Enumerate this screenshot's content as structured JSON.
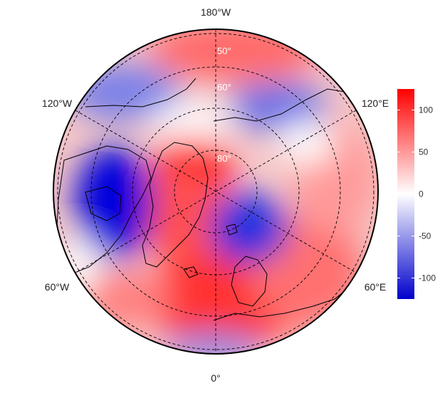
{
  "map": {
    "projection": "north polar stereographic",
    "longitude_labels": {
      "top": "180°W",
      "upper_left": "120°W",
      "upper_right": "120°E",
      "lower_left": "60°W",
      "lower_right": "60°E",
      "bottom": "0°"
    },
    "latitude_labels": [
      "80°",
      "60°",
      "50°"
    ],
    "colors": {
      "negative": "#0000cc",
      "zero": "#ffffff",
      "positive": "#ff0000"
    }
  },
  "colorbar": {
    "ticks": [
      "100",
      "50",
      "0",
      "-50",
      "-100"
    ],
    "tick_values": [
      100,
      50,
      0,
      -50,
      -100
    ],
    "range": [
      -125,
      125
    ]
  }
}
